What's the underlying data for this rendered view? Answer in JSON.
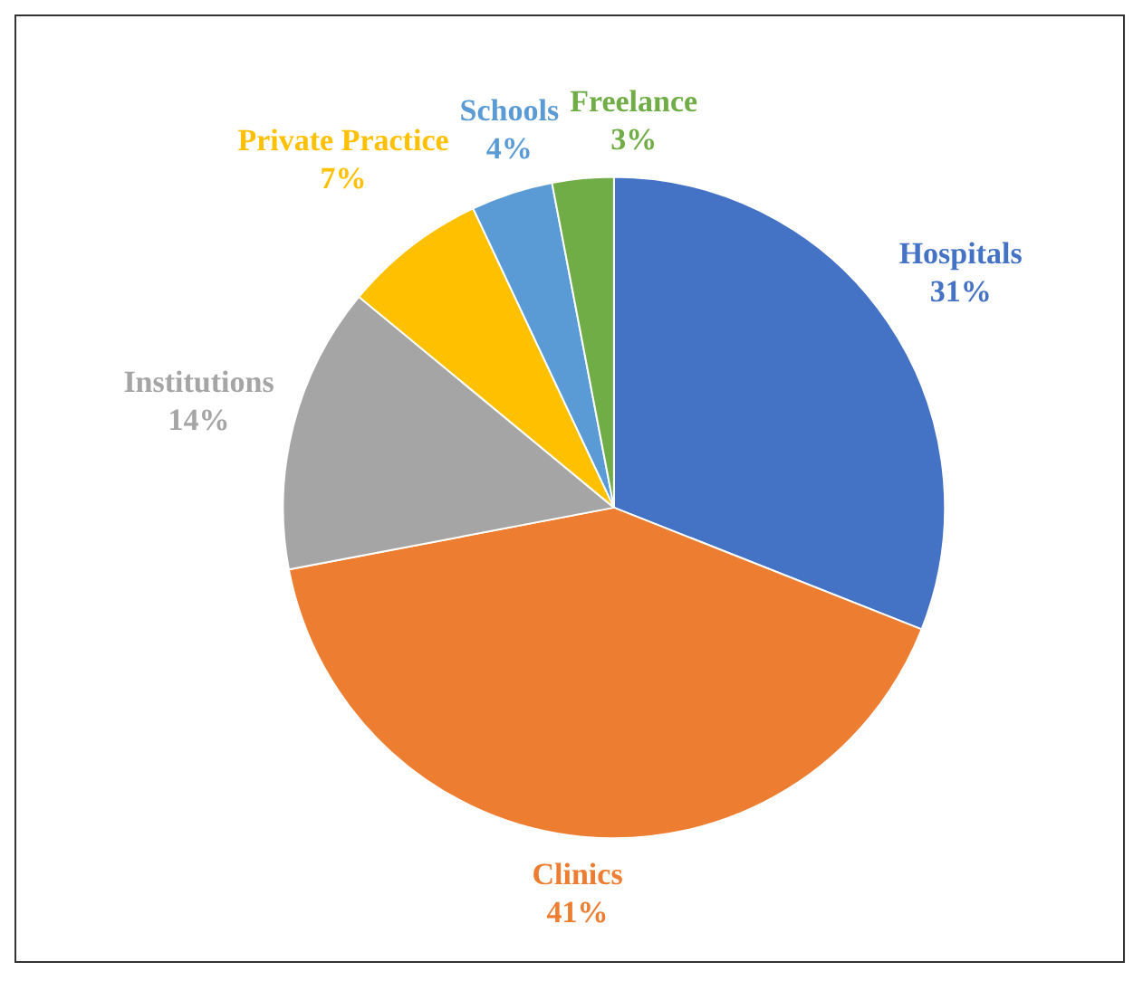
{
  "chart_data": {
    "type": "pie",
    "categories": [
      "Hospitals",
      "Clinics",
      "Institutions",
      "Private Practice",
      "Schools",
      "Freelance"
    ],
    "values": [
      31,
      41,
      14,
      7,
      4,
      3
    ],
    "colors": [
      "#4472c4",
      "#ed7d31",
      "#a5a5a5",
      "#ffc000",
      "#5b9bd5",
      "#70ad47"
    ],
    "value_labels": [
      "31%",
      "41%",
      "14%",
      "7%",
      "4%",
      "3%"
    ],
    "legend": false
  }
}
